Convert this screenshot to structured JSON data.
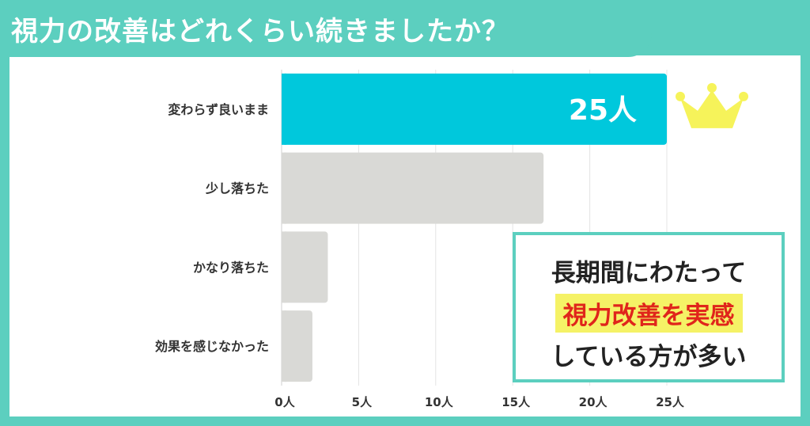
{
  "title": "視力の改善はどれくらい続きましたか？",
  "chart_data": {
    "type": "bar",
    "orientation": "horizontal",
    "categories": [
      "変わらず良いまま",
      "少し落ちた",
      "かなり落ちた",
      "効果を感じなかった"
    ],
    "values": [
      25,
      17,
      3,
      2
    ],
    "highlight_index": 0,
    "highlight_label": "25人",
    "xlim": [
      0,
      25
    ],
    "xticks": [
      "0人",
      "5人",
      "10人",
      "15人",
      "20人",
      "25人"
    ],
    "grid": true,
    "colors": {
      "highlight": "#00c8dc",
      "bar": "#d9d9d6",
      "grid": "#e4e4e4",
      "crown": "#f6f35a"
    }
  },
  "callout": {
    "line1": "長期間にわたって",
    "line2": "視力改善を実感",
    "line3": "している方が多い"
  },
  "icons": {
    "top_bar": "crown-icon"
  }
}
